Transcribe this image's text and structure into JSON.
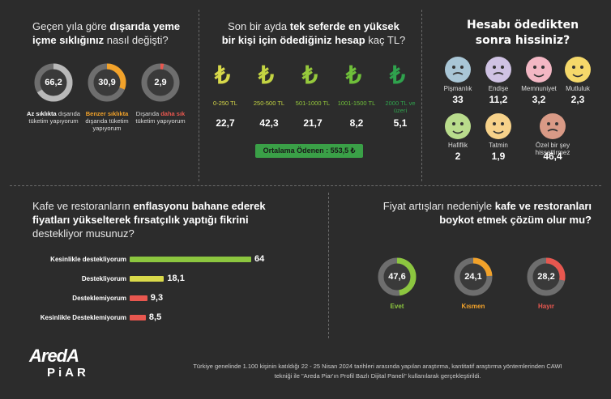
{
  "q1": {
    "title_pre": "Geçen yıla göre ",
    "title_bold1": "dışarıda yeme",
    "title_bold2": "içme sıklığınız",
    "title_post": " nasıl değişti?",
    "items": [
      {
        "value": "66,2",
        "pct": 0.662,
        "color": "#b9b9b9",
        "cap_bold": "Az sıklıkta",
        "cap_rest": "dışarıda tüketim yapıyorum",
        "bold_color": "#ffffff"
      },
      {
        "value": "30,9",
        "pct": 0.309,
        "color": "#f2a22a",
        "cap_bold": "Benzer sıklıkta",
        "cap_rest": "dışarıda tüketim yapıyorum",
        "bold_color": "#f2a22a"
      },
      {
        "value": "2,9",
        "pct": 0.029,
        "color": "#e8574f",
        "cap_pre": "Dışarıda ",
        "cap_bold": "daha sık",
        "cap_rest": "tüketim yapıyorum",
        "bold_color": "#e8574f"
      }
    ]
  },
  "q2": {
    "title_pre": "Son bir ayda ",
    "title_bold1": "tek seferde en yüksek",
    "title_bold2": "bir kişi için ödediğiniz hesap",
    "title_post": " kaç TL?",
    "symbol": "₺",
    "items": [
      {
        "label": "0-250 TL",
        "value": "22,7",
        "color": "#d8d94a"
      },
      {
        "label": "250-500 TL",
        "value": "42,3",
        "color": "#c3d442"
      },
      {
        "label": "501-1000 TL",
        "value": "21,7",
        "color": "#96c93c"
      },
      {
        "label": "1001-1500 TL",
        "value": "8,2",
        "color": "#6fbf3a"
      },
      {
        "label": "2000 TL ve üzeri",
        "value": "5,1",
        "color": "#2fa24d"
      }
    ],
    "average": "Ortalama Ödenen : 553,5 ₺",
    "average_color": "#3aa047"
  },
  "q3": {
    "title1": "Hesabı ödedikten",
    "title2": "sonra hissiniz?",
    "items": [
      {
        "label": "Pişmanlık",
        "value": "33",
        "face": "sad-face-icon",
        "color": "#a9c6d6"
      },
      {
        "label": "Endişe",
        "value": "11,2",
        "face": "worried-face-icon",
        "color": "#cfc2e3"
      },
      {
        "label": "Memnuniyet",
        "value": "3,2",
        "face": "satisfied-face-icon",
        "color": "#f3b7c4"
      },
      {
        "label": "Mutluluk",
        "value": "2,3",
        "face": "happy-face-icon",
        "color": "#f5d86a"
      },
      {
        "label": "Hafiflik",
        "value": "2",
        "face": "relieved-face-icon",
        "color": "#b9dc8c"
      },
      {
        "label": "Tatmin",
        "value": "1,9",
        "face": "content-face-icon",
        "color": "#f7d28a"
      },
      {
        "label": "Özel bir şey hissettirmez",
        "value": "46,4",
        "face": "neutral-face-icon",
        "color": "#d99a86"
      }
    ]
  },
  "q4": {
    "title_pre": "Kafe ve restoranların ",
    "title_bold1": "enflasyonu bahane ederek",
    "title_bold2": "fiyatları yükselterek fırsatçılık yaptığı fikrini",
    "title_post": "destekliyor musunuz?",
    "items": [
      {
        "label": "Kesinlikle destekliyorum",
        "value": "64",
        "num": 64,
        "color": "#8cc63f"
      },
      {
        "label": "Destekliyorum",
        "value": "18,1",
        "num": 18.1,
        "color": "#d9d94a"
      },
      {
        "label": "Desteklemiyorum",
        "value": "9,3",
        "num": 9.3,
        "color": "#e8574f"
      },
      {
        "label": "Kesinlikle Desteklemiyorum",
        "value": "8,5",
        "num": 8.5,
        "color": "#e8574f"
      }
    ]
  },
  "q5": {
    "title_pre": "Fiyat artışları nedeniyle ",
    "title_bold1": "kafe ve restoranları",
    "title_bold2": "boykot etmek çözüm olur mu?",
    "items": [
      {
        "label": "Evet",
        "value": "47,6",
        "pct": 0.476,
        "color": "#8cc63f"
      },
      {
        "label": "Kısmen",
        "value": "24,1",
        "pct": 0.241,
        "color": "#f2a22a"
      },
      {
        "label": "Hayır",
        "value": "28,2",
        "pct": 0.282,
        "color": "#e8574f"
      }
    ]
  },
  "footer": {
    "logo1": "AredA",
    "logo2": "PiAR",
    "note1": "Türkiye genelinde 1.100 kişinin katıldığı 22 - 25 Nisan 2024 tarihleri arasında yapılan araştırma, kantitatif araştırma yöntemlerinden CAWI",
    "note2": "tekniği ile \"Areda Piar'ın Profil Bazlı Dijital Paneli\" kullanılarak gerçekleştirildi."
  }
}
